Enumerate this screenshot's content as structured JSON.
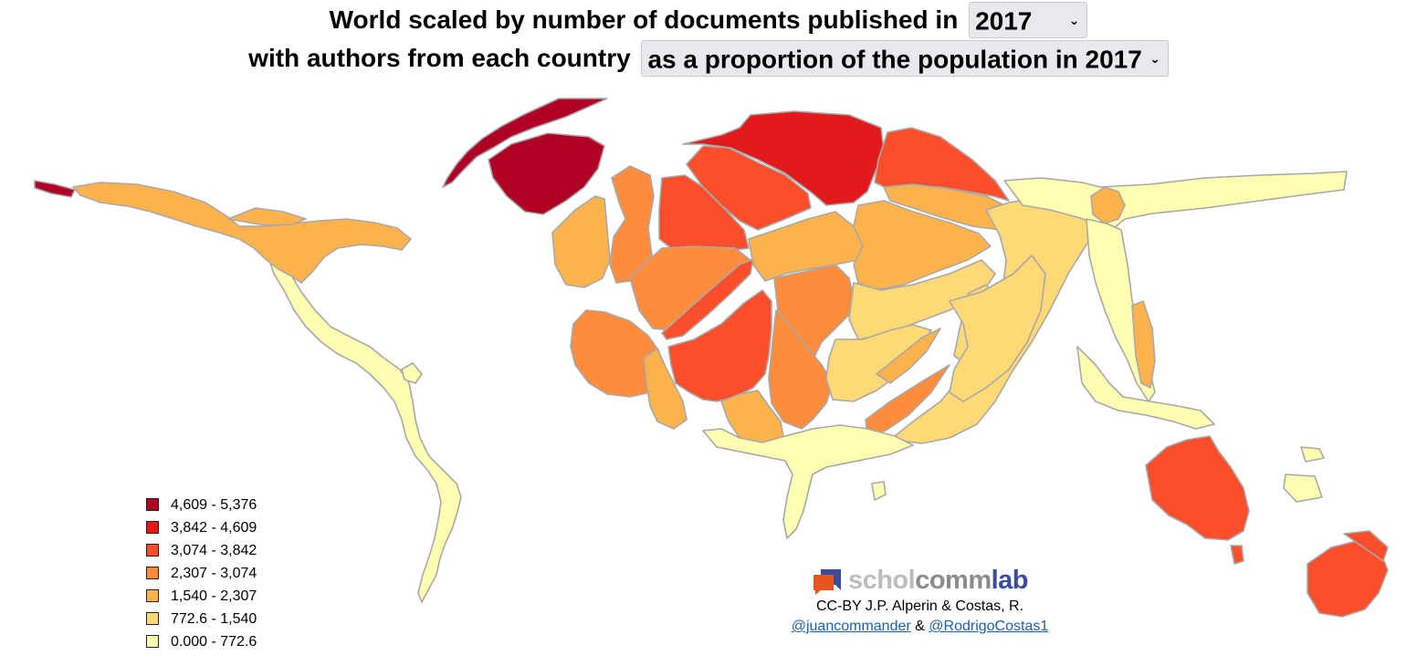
{
  "header": {
    "line1_prefix": "World scaled by number of documents published in",
    "year_value": "2017",
    "line2_prefix": "with authors from each country",
    "measure_value": "as a proportion of the population in 2017"
  },
  "legend": {
    "items": [
      {
        "label": "4,609 - 5,376",
        "color": "#b10026"
      },
      {
        "label": "3,842 - 4,609",
        "color": "#e31a1c"
      },
      {
        "label": "3,074 - 3,842",
        "color": "#fc4e2a"
      },
      {
        "label": "2,307 - 3,074",
        "color": "#fd8d3c"
      },
      {
        "label": "1,540 - 2,307",
        "color": "#feb24c"
      },
      {
        "label": "772.6 - 1,540",
        "color": "#fed976"
      },
      {
        "label": "0.000 - 772.6",
        "color": "#ffffb2"
      }
    ]
  },
  "map": {
    "stroke_color": "#a8a8a8",
    "regions": [
      {
        "name": "greenland",
        "class": 0
      },
      {
        "name": "scandinavia",
        "class": 0
      },
      {
        "name": "western-europe-central",
        "class": 0
      },
      {
        "name": "italy",
        "class": 0
      },
      {
        "name": "australia",
        "class": 2
      },
      {
        "name": "new-zealand",
        "class": 2
      },
      {
        "name": "northeast-europe",
        "class": 1
      },
      {
        "name": "finland-baltic",
        "class": 2
      },
      {
        "name": "switzerland-band",
        "class": 2
      },
      {
        "name": "uk",
        "class": 3
      },
      {
        "name": "france",
        "class": 3
      },
      {
        "name": "iberia",
        "class": 3
      },
      {
        "name": "north-america",
        "class": 4
      },
      {
        "name": "ireland",
        "class": 4
      },
      {
        "name": "central-europe",
        "class": 4
      },
      {
        "name": "north-africa-west",
        "class": 4
      },
      {
        "name": "balkans",
        "class": 3
      },
      {
        "name": "eastern-europe",
        "class": 4
      },
      {
        "name": "middle-east",
        "class": 3
      },
      {
        "name": "east-asia-hub",
        "class": 4
      },
      {
        "name": "russia",
        "class": 5
      },
      {
        "name": "central-asia",
        "class": 5
      },
      {
        "name": "south-asia",
        "class": 5
      },
      {
        "name": "latin-america",
        "class": 6
      },
      {
        "name": "africa",
        "class": 6
      },
      {
        "name": "asia-east",
        "class": 6
      }
    ]
  },
  "credit": {
    "logo_part1": "schol",
    "logo_part2": "comm",
    "logo_part3": "lab",
    "license_line": "CC-BY J.P. Alperin & Costas, R.",
    "handle1": "@juancommander",
    "amp": "&",
    "handle2": "@RodrigoCostas1"
  }
}
